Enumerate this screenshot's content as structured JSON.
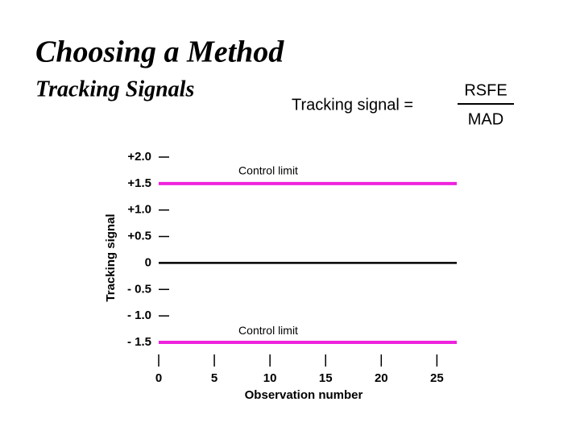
{
  "title": "Choosing a Method",
  "subtitle": "Tracking Signals",
  "formula": {
    "lhs": "Tracking signal =",
    "numerator": "RSFE",
    "denominator": "MAD"
  },
  "chart_data": {
    "type": "control",
    "y_label": "Tracking signal",
    "x_label": "Observation number",
    "xlim": [
      0,
      27
    ],
    "xticks": [
      0,
      5,
      10,
      15,
      20,
      25
    ],
    "ylim": [
      -1.5,
      2.0
    ],
    "yticks": [
      {
        "value": 2.0,
        "label": "+2.0"
      },
      {
        "value": 1.5,
        "label": "+1.5"
      },
      {
        "value": 1.0,
        "label": "+1.0"
      },
      {
        "value": 0.5,
        "label": "+0.5"
      },
      0,
      {
        "value": -0.5,
        "label": "- 0.5"
      },
      {
        "value": -1.0,
        "label": "- 1.0"
      },
      {
        "value": -1.5,
        "label": "- 1.5"
      }
    ],
    "control_limits": [
      {
        "value": 1.5,
        "label": "Control limit",
        "color": "#ee22dd"
      },
      {
        "value": -1.5,
        "label": "Control limit",
        "color": "#ee22dd"
      }
    ],
    "zero_line_color": "#000000"
  }
}
